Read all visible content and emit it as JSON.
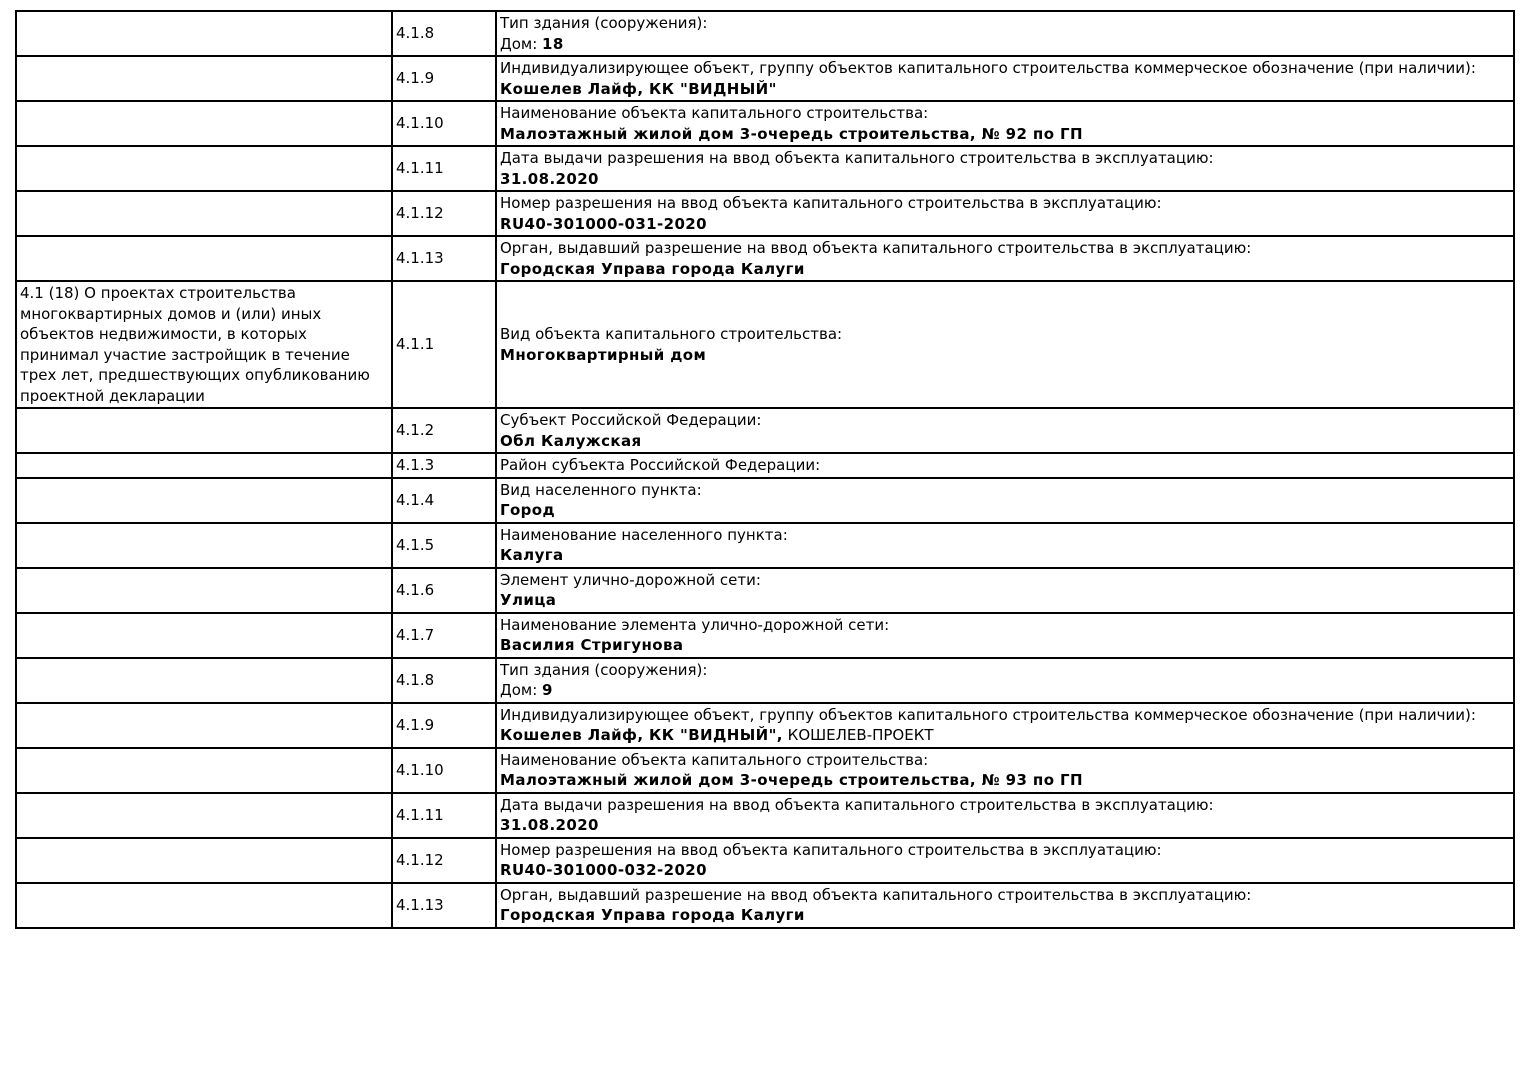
{
  "colors": {
    "text": "#000000",
    "border": "#000000",
    "background": "#ffffff"
  },
  "table": {
    "column_names": [
      "section",
      "code",
      "content"
    ],
    "rows": [
      {
        "section": "",
        "code": "4.1.8",
        "label": "Тип здания (сооружения):",
        "value": [
          {
            "text": "Дом: ",
            "bold": false
          },
          {
            "text": "18",
            "bold": true
          }
        ]
      },
      {
        "section": "",
        "code": "4.1.9",
        "label": "Индивидуализирующее объект, группу объектов капитального строительства коммерческое обозначение (при наличии):",
        "value": [
          {
            "text": "Кошелев Лайф, КК \"ВИДНЫЙ\"",
            "bold": true
          }
        ]
      },
      {
        "section": "",
        "code": "4.1.10",
        "label": "Наименование объекта капитального строительства:",
        "value": [
          {
            "text": "Малоэтажный жилой дом 3-очередь строительства, № 92 по ГП",
            "bold": true
          }
        ]
      },
      {
        "section": "",
        "code": "4.1.11",
        "label": "Дата выдачи разрешения на ввод объекта капитального строительства в эксплуатацию:",
        "value": [
          {
            "text": "31.08.2020",
            "bold": true
          }
        ]
      },
      {
        "section": "",
        "code": "4.1.12",
        "label": "Номер разрешения на ввод объекта капитального строительства в эксплуатацию:",
        "value": [
          {
            "text": "RU40-301000-031-2020",
            "bold": true
          }
        ]
      },
      {
        "section": "",
        "code": "4.1.13",
        "label": "Орган, выдавший разрешение на ввод объекта капитального строительства в эксплуатацию:",
        "value": [
          {
            "text": "Городская Управа города Калуги",
            "bold": true
          }
        ]
      },
      {
        "section": "4.1 (18) О проектах строительства многоквартирных домов и (или) иных объектов недвижимости, в которых принимал участие застройщик в течение трех лет, предшествующих опубликованию проектной декларации",
        "code": "4.1.1",
        "label": "Вид объекта капитального строительства:",
        "value": [
          {
            "text": "Многоквартирный дом",
            "bold": true
          }
        ]
      },
      {
        "section": "",
        "code": "4.1.2",
        "label": "Субъект Российской Федерации:",
        "value": [
          {
            "text": "Обл Калужская",
            "bold": true
          }
        ]
      },
      {
        "section": "",
        "code": "4.1.3",
        "label": "Район субъекта Российской Федерации:",
        "value": []
      },
      {
        "section": "",
        "code": "4.1.4",
        "label": "Вид населенного пункта:",
        "value": [
          {
            "text": "Город",
            "bold": true
          }
        ]
      },
      {
        "section": "",
        "code": "4.1.5",
        "label": "Наименование населенного пункта:",
        "value": [
          {
            "text": "Калуга",
            "bold": true
          }
        ]
      },
      {
        "section": "",
        "code": "4.1.6",
        "label": "Элемент улично-дорожной сети:",
        "value": [
          {
            "text": "Улица",
            "bold": true
          }
        ]
      },
      {
        "section": "",
        "code": "4.1.7",
        "label": "Наименование элемента улично-дорожной сети:",
        "value": [
          {
            "text": "Василия Стригунова",
            "bold": true
          }
        ]
      },
      {
        "section": "",
        "code": "4.1.8",
        "label": "Тип здания (сооружения):",
        "value": [
          {
            "text": "Дом: ",
            "bold": false
          },
          {
            "text": "9",
            "bold": true
          }
        ]
      },
      {
        "section": "",
        "code": "4.1.9",
        "label": "Индивидуализирующее объект, группу объектов капитального строительства коммерческое обозначение (при наличии):",
        "value": [
          {
            "text": "Кошелев Лайф, КК \"ВИДНЫЙ\",",
            "bold": true
          },
          {
            "text": " КОШЕЛЕВ-ПРОЕКТ",
            "bold": false
          }
        ]
      },
      {
        "section": "",
        "code": "4.1.10",
        "label": "Наименование объекта капитального строительства:",
        "value": [
          {
            "text": "Малоэтажный жилой дом 3-очередь строительства, № 93 по ГП",
            "bold": true
          }
        ]
      },
      {
        "section": "",
        "code": "4.1.11",
        "label": "Дата выдачи разрешения на ввод объекта капитального строительства в эксплуатацию:",
        "value": [
          {
            "text": "31.08.2020",
            "bold": true
          }
        ]
      },
      {
        "section": "",
        "code": "4.1.12",
        "label": "Номер разрешения на ввод объекта капитального строительства в эксплуатацию:",
        "value": [
          {
            "text": "RU40-301000-032-2020",
            "bold": true
          }
        ]
      },
      {
        "section": "",
        "code": "4.1.13",
        "label": "Орган, выдавший разрешение на ввод объекта капитального строительства в эксплуатацию:",
        "value": [
          {
            "text": "Городская Управа города Калуги",
            "bold": true
          }
        ]
      }
    ]
  }
}
